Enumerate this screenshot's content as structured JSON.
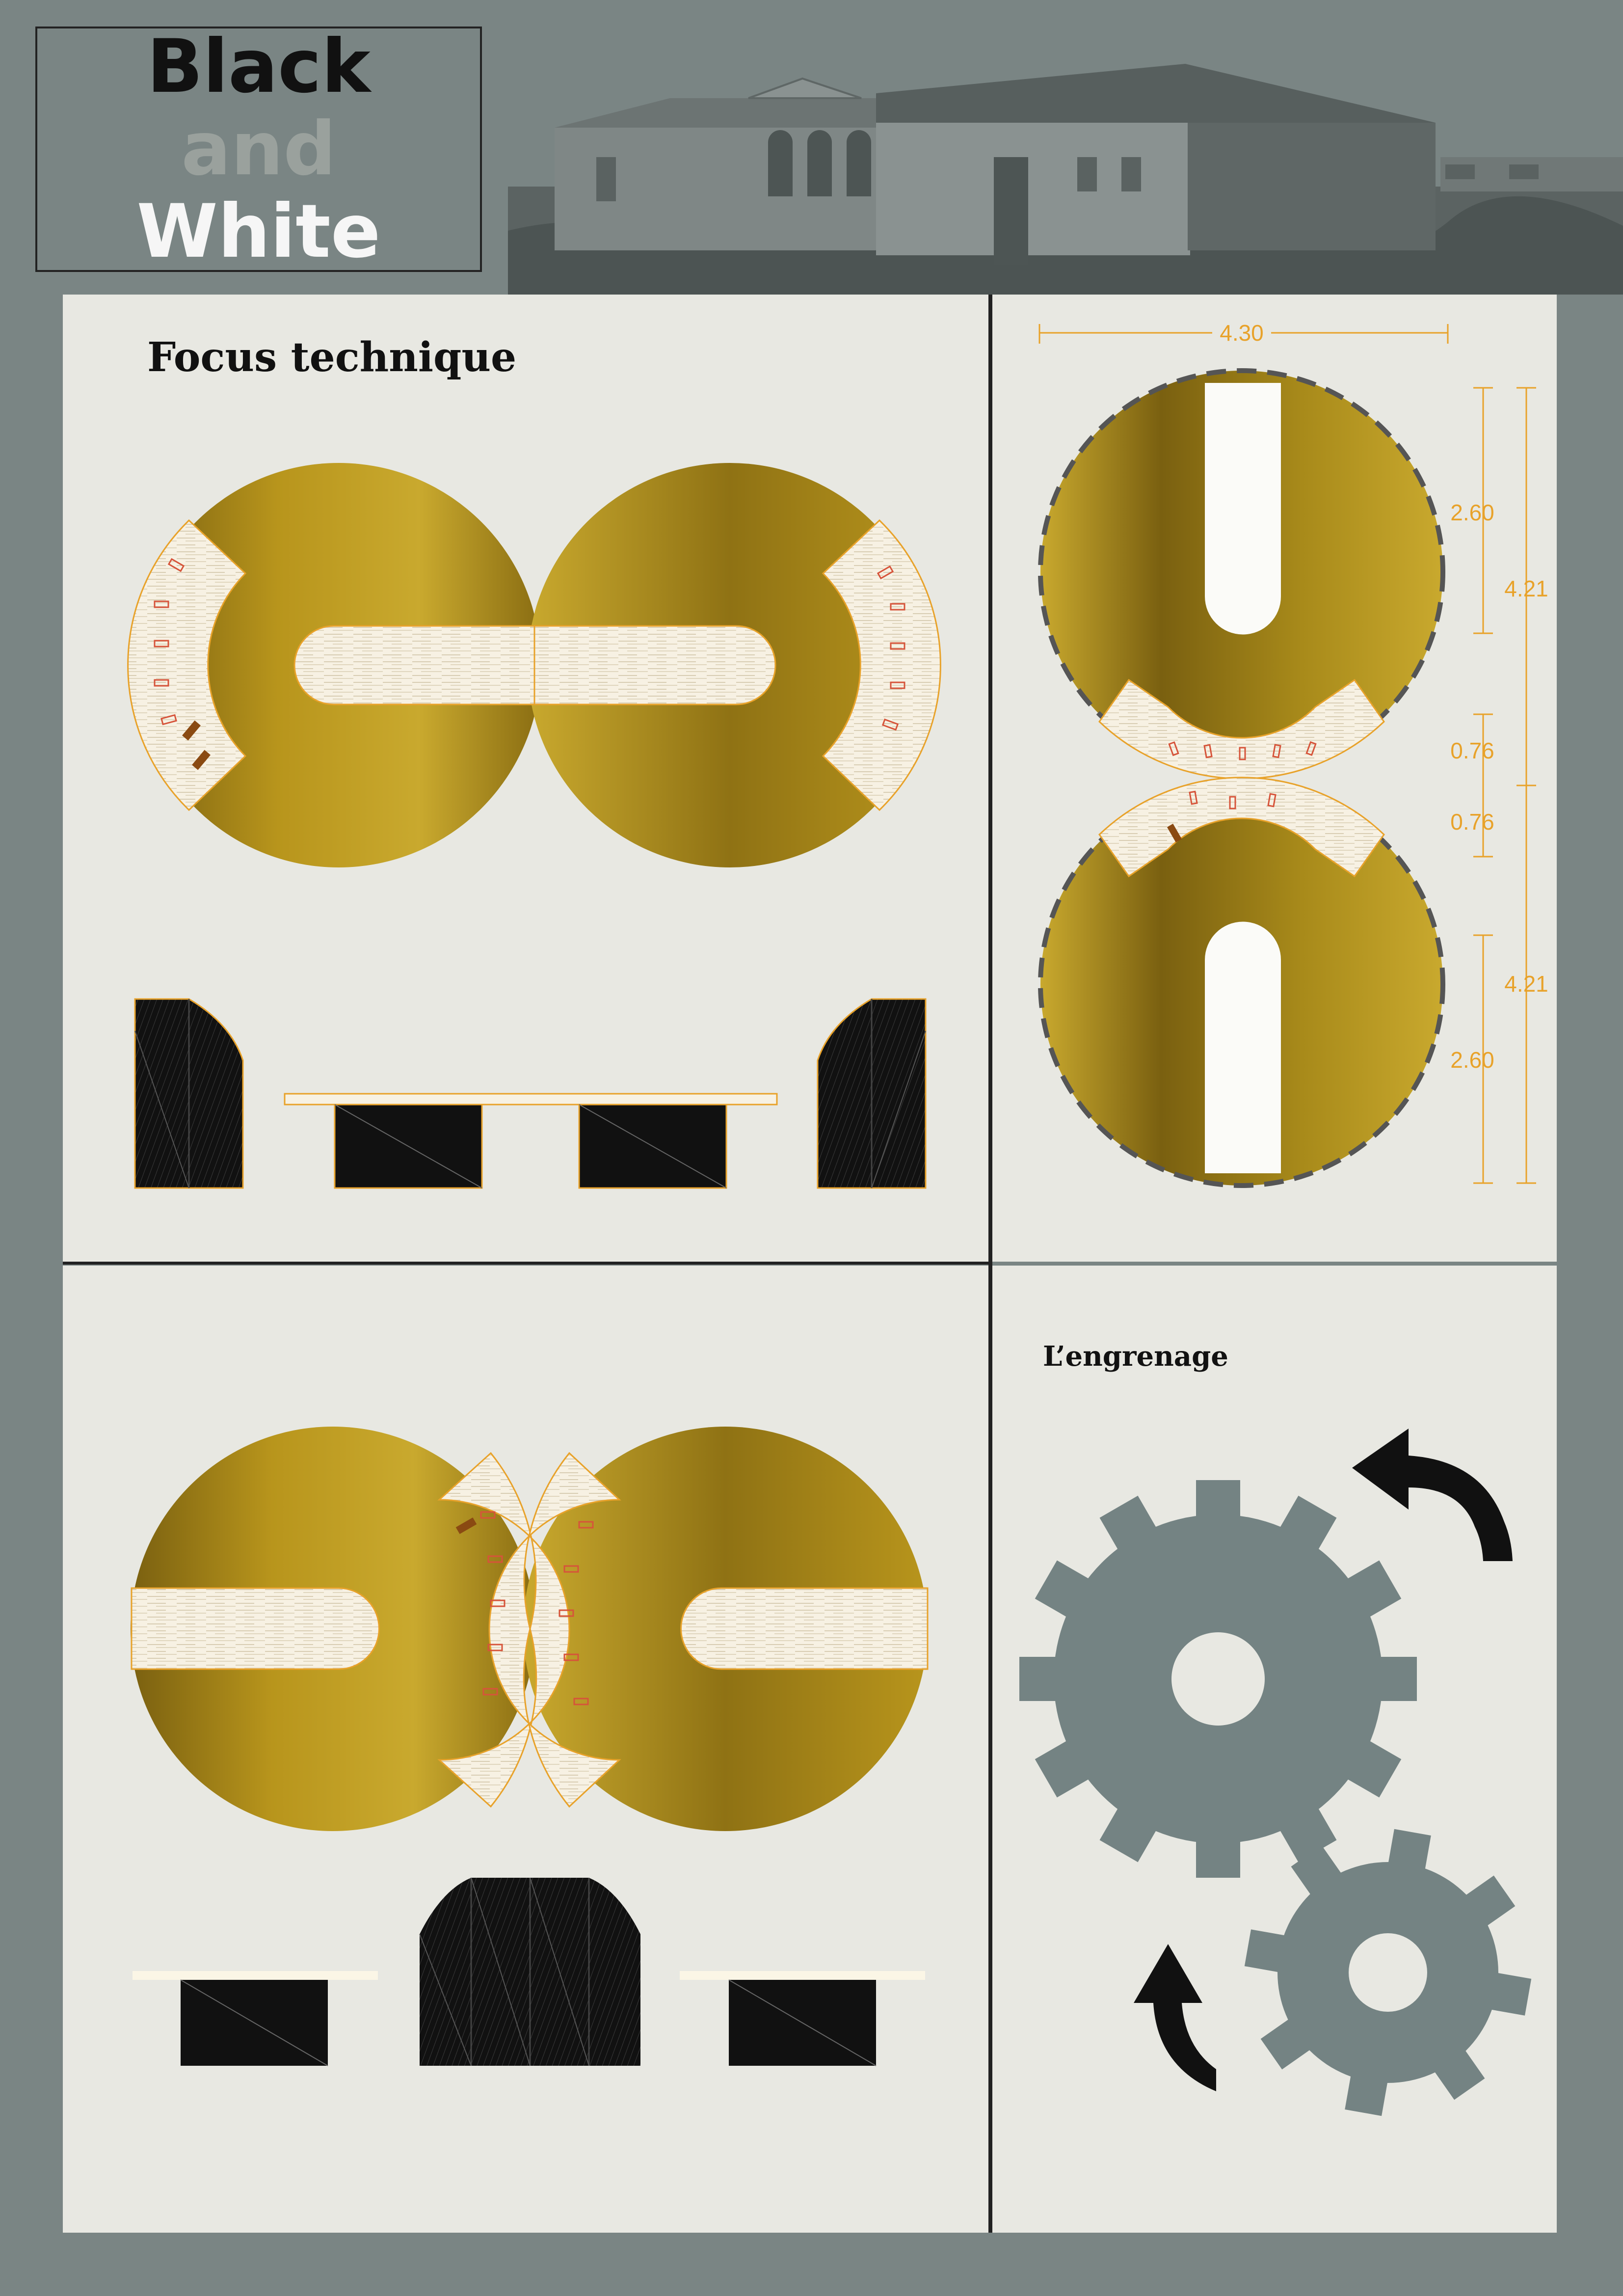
{
  "header": {
    "title_line1": "Black",
    "title_line2": "and",
    "title_line3": "White"
  },
  "focus": {
    "heading": "Focus technique"
  },
  "dimensions": {
    "width": "4.30",
    "upper_slot": "2.60",
    "upper_total": "4.21",
    "upper_gap": "0.76",
    "lower_gap": "0.76",
    "lower_total": "4.21",
    "lower_slot": "2.60"
  },
  "gearing": {
    "heading": "L’engrenage"
  },
  "colors": {
    "background": "#7a8584",
    "panel": "#e8e8e2",
    "gold_light": "#c9a92e",
    "gold_dark": "#7a6010",
    "wood": "#f5efe0",
    "dimension": "#e8a22a",
    "gear_grey": "#748383",
    "black": "#111111"
  },
  "icons": {
    "top_arrow": "curved-arrow-counterclockwise-icon",
    "bottom_arrow": "curved-arrow-up-icon",
    "gears": "gear-icon"
  }
}
